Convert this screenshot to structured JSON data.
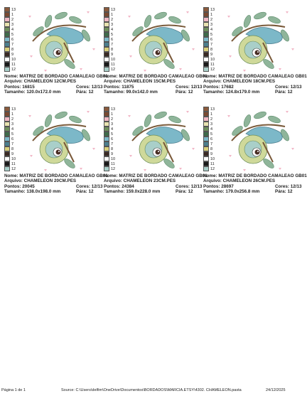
{
  "labels": {
    "name": "Nome:",
    "file": "Arquivo:",
    "stitches": "Pontos:",
    "colors": "Cores:",
    "size": "Tamanho:",
    "stops": "Pára:"
  },
  "swatches": [
    {
      "number": "13",
      "color": "#8a5a3c"
    },
    {
      "number": "1",
      "color": "#7a4a32"
    },
    {
      "number": "2",
      "color": "#f0b8c4"
    },
    {
      "number": "3",
      "color": "#e8e3b0"
    },
    {
      "number": "4",
      "color": "#6d8f5c"
    },
    {
      "number": "5",
      "color": "#3f6b4a"
    },
    {
      "number": "6",
      "color": "#7cb8c8"
    },
    {
      "number": "7",
      "color": "#4c7f8e"
    },
    {
      "number": "8",
      "color": "#d9cf7a"
    },
    {
      "number": "9",
      "color": "#3a2a24"
    },
    {
      "number": "10",
      "color": "#ffffff"
    },
    {
      "number": "11",
      "color": "#1a1a1a"
    },
    {
      "number": "12",
      "color": "#a9cfc9"
    }
  ],
  "designs": [
    {
      "name": "MATRIZ DE BORDADO CAMALEAO GB01",
      "file": "CHAMELEON 12CM.PES",
      "stitches": "16815",
      "colors": "12/13",
      "size": "120.0x172.0 mm",
      "stops": "12"
    },
    {
      "name": "MATRIZ DE BORDADO CAMALEAO GB01",
      "file": "CHAMELEON 15CM.PES",
      "stitches": "11875",
      "colors": "12/13",
      "size": "99.0x142.0 mm",
      "stops": "12"
    },
    {
      "name": "MATRIZ DE BORDADO CAMALEAO GB01",
      "file": "CHAMELEON 18CM.PES",
      "stitches": "17682",
      "colors": "12/13",
      "size": "124.8x179.0 mm",
      "stops": "12"
    },
    {
      "name": "MATRIZ DE BORDADO CAMALEAO GB01",
      "file": "CHAMELEON 20CM.PES",
      "stitches": "20045",
      "colors": "12/13",
      "size": "138.0x198.0 mm",
      "stops": "12"
    },
    {
      "name": "MATRIZ DE BORDADO CAMALEAO GB01",
      "file": "CHAMELEON 23CM.PES",
      "stitches": "24384",
      "colors": "12/13",
      "size": "159.0x228.0 mm",
      "stops": "12"
    },
    {
      "name": "MATRIZ DE BORDADO CAMALEAO GB01",
      "file": "CHAMELEON 26CM.PES",
      "stitches": "28697",
      "colors": "12/13",
      "size": "179.0x256.8 mm",
      "stops": "12"
    }
  ],
  "footer": {
    "page": "Página 1 de 1",
    "source": "Source: C:\\Users\\delfim\\OneDrive\\Documentos\\BORDADOS\\MARCIA.ETSY\\4302. CHAMELEON.pasta",
    "date": "24/12/2025"
  }
}
